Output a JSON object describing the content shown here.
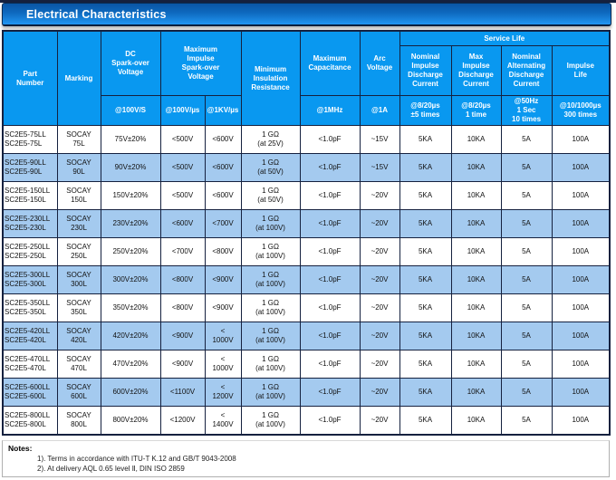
{
  "title": "Electrical Characteristics",
  "colors": {
    "header_blue": "#0998F0",
    "row_alt_blue": "#A4CAEF",
    "title_gradient_top": "#0A55A5",
    "title_gradient_bottom": "#2196F3",
    "border_dark": "#15213F"
  },
  "table": {
    "headers": {
      "part_number": "Part\nNumber",
      "marking": "Marking",
      "dc_sparkover": "DC\nSpark-over\nVoltage",
      "max_impulse_sparkover": "Maximum\nImpulse\nSpark-over\nVoltage",
      "min_insulation": "Minimum\nInsulation\nResistance",
      "max_capacitance": "Maximum\nCapacitance",
      "arc_voltage": "Arc\nVoltage",
      "service_life": "Service Life",
      "nominal_impulse": "Nominal\nImpulse\nDischarge\nCurrent",
      "max_impulse": "Max\nImpulse\nDischarge\nCurrent",
      "nominal_alternating": "Nominal\nAlternating\nDischarge\nCurrent",
      "impulse_life": "Impulse\nLife"
    },
    "subheaders": {
      "dc_sparkover": "@100V/S",
      "impulse_100v": "@100V/µs",
      "impulse_1kv": "@1KV/µs",
      "capacitance": "@1MHz",
      "arc": "@1A",
      "nominal_impulse": "@8/20µs\n±5 times",
      "max_impulse": "@8/20µs\n1 time",
      "nominal_alternating": "@50Hz\n1 Sec\n10 times",
      "impulse_life": "@10/1000µs\n300 times"
    },
    "row_fields": [
      "part_number",
      "marking",
      "dc_sparkover",
      "impulse_100v",
      "impulse_1kv",
      "insulation",
      "capacitance",
      "arc",
      "nominal_impulse",
      "max_impulse",
      "alternating",
      "impulse_life"
    ],
    "rows": [
      {
        "part_number": "SC2E5-75LL\nSC2E5-75L",
        "marking": "SOCAY\n75L",
        "dc_sparkover": "75V±20%",
        "impulse_100v": "<500V",
        "impulse_1kv": "<600V",
        "insulation": "1 GΩ\n(at 25V)",
        "capacitance": "<1.0pF",
        "arc": "~15V",
        "nominal_impulse": "5KA",
        "max_impulse": "10KA",
        "alternating": "5A",
        "impulse_life": "100A"
      },
      {
        "part_number": "SC2E5-90LL\nSC2E5-90L",
        "marking": "SOCAY\n90L",
        "dc_sparkover": "90V±20%",
        "impulse_100v": "<500V",
        "impulse_1kv": "<600V",
        "insulation": "1 GΩ\n(at 50V)",
        "capacitance": "<1.0pF",
        "arc": "~15V",
        "nominal_impulse": "5KA",
        "max_impulse": "10KA",
        "alternating": "5A",
        "impulse_life": "100A"
      },
      {
        "part_number": "SC2E5-150LL\nSC2E5-150L",
        "marking": "SOCAY\n150L",
        "dc_sparkover": "150V±20%",
        "impulse_100v": "<500V",
        "impulse_1kv": "<600V",
        "insulation": "1 GΩ\n(at 50V)",
        "capacitance": "<1.0pF",
        "arc": "~20V",
        "nominal_impulse": "5KA",
        "max_impulse": "10KA",
        "alternating": "5A",
        "impulse_life": "100A"
      },
      {
        "part_number": "SC2E5-230LL\nSC2E5-230L",
        "marking": "SOCAY\n230L",
        "dc_sparkover": "230V±20%",
        "impulse_100v": "<600V",
        "impulse_1kv": "<700V",
        "insulation": "1 GΩ\n(at 100V)",
        "capacitance": "<1.0pF",
        "arc": "~20V",
        "nominal_impulse": "5KA",
        "max_impulse": "10KA",
        "alternating": "5A",
        "impulse_life": "100A"
      },
      {
        "part_number": "SC2E5-250LL\nSC2E5-250L",
        "marking": "SOCAY\n250L",
        "dc_sparkover": "250V±20%",
        "impulse_100v": "<700V",
        "impulse_1kv": "<800V",
        "insulation": "1 GΩ\n(at 100V)",
        "capacitance": "<1.0pF",
        "arc": "~20V",
        "nominal_impulse": "5KA",
        "max_impulse": "10KA",
        "alternating": "5A",
        "impulse_life": "100A"
      },
      {
        "part_number": "SC2E5-300LL\nSC2E5-300L",
        "marking": "SOCAY\n300L",
        "dc_sparkover": "300V±20%",
        "impulse_100v": "<800V",
        "impulse_1kv": "<900V",
        "insulation": "1 GΩ\n(at 100V)",
        "capacitance": "<1.0pF",
        "arc": "~20V",
        "nominal_impulse": "5KA",
        "max_impulse": "10KA",
        "alternating": "5A",
        "impulse_life": "100A"
      },
      {
        "part_number": "SC2E5-350LL\nSC2E5-350L",
        "marking": "SOCAY\n350L",
        "dc_sparkover": "350V±20%",
        "impulse_100v": "<800V",
        "impulse_1kv": "<900V",
        "insulation": "1 GΩ\n(at 100V)",
        "capacitance": "<1.0pF",
        "arc": "~20V",
        "nominal_impulse": "5KA",
        "max_impulse": "10KA",
        "alternating": "5A",
        "impulse_life": "100A"
      },
      {
        "part_number": "SC2E5-420LL\nSC2E5-420L",
        "marking": "SOCAY\n420L",
        "dc_sparkover": "420V±20%",
        "impulse_100v": "<900V",
        "impulse_1kv": "<\n1000V",
        "insulation": "1 GΩ\n(at 100V)",
        "capacitance": "<1.0pF",
        "arc": "~20V",
        "nominal_impulse": "5KA",
        "max_impulse": "10KA",
        "alternating": "5A",
        "impulse_life": "100A"
      },
      {
        "part_number": "SC2E5-470LL\nSC2E5-470L",
        "marking": "SOCAY\n470L",
        "dc_sparkover": "470V±20%",
        "impulse_100v": "<900V",
        "impulse_1kv": "<\n1000V",
        "insulation": "1 GΩ\n(at 100V)",
        "capacitance": "<1.0pF",
        "arc": "~20V",
        "nominal_impulse": "5KA",
        "max_impulse": "10KA",
        "alternating": "5A",
        "impulse_life": "100A"
      },
      {
        "part_number": "SC2E5-600LL\nSC2E5-600L",
        "marking": "SOCAY\n600L",
        "dc_sparkover": "600V±20%",
        "impulse_100v": "<1100V",
        "impulse_1kv": "<\n1200V",
        "insulation": "1 GΩ\n(at 100V)",
        "capacitance": "<1.0pF",
        "arc": "~20V",
        "nominal_impulse": "5KA",
        "max_impulse": "10KA",
        "alternating": "5A",
        "impulse_life": "100A"
      },
      {
        "part_number": "SC2E5-800LL\nSC2E5-800L",
        "marking": "SOCAY\n800L",
        "dc_sparkover": "800V±20%",
        "impulse_100v": "<1200V",
        "impulse_1kv": "<\n1400V",
        "insulation": "1 GΩ\n(at 100V)",
        "capacitance": "<1.0pF",
        "arc": "~20V",
        "nominal_impulse": "5KA",
        "max_impulse": "10KA",
        "alternating": "5A",
        "impulse_life": "100A"
      }
    ]
  },
  "notes": {
    "label": "Notes:",
    "items": [
      "1). Terms in accordance with ITU-T K.12 and GB/T 9043-2008",
      "2). At delivery AQL 0.65 level Ⅱ, DIN ISO 2859"
    ]
  }
}
